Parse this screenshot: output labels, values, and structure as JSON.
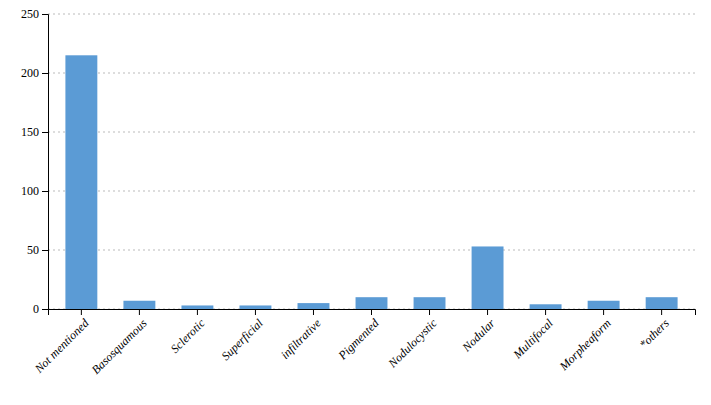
{
  "chart_data": {
    "type": "bar",
    "categories": [
      "Not mentioned",
      "Basosquamous",
      "Sclerotic",
      "Superficial",
      "infiltrative",
      "Pigmented",
      "Nodulocystic",
      "Nodular",
      "Multifocal",
      "Morpheaform",
      "*others"
    ],
    "values": [
      215,
      7,
      3,
      3,
      5,
      10,
      10,
      53,
      4,
      7,
      10
    ],
    "color": "#5b9bd5",
    "ylim": [
      0,
      250
    ],
    "yticks": [
      0,
      50,
      100,
      150,
      200,
      250
    ],
    "grid": true
  }
}
